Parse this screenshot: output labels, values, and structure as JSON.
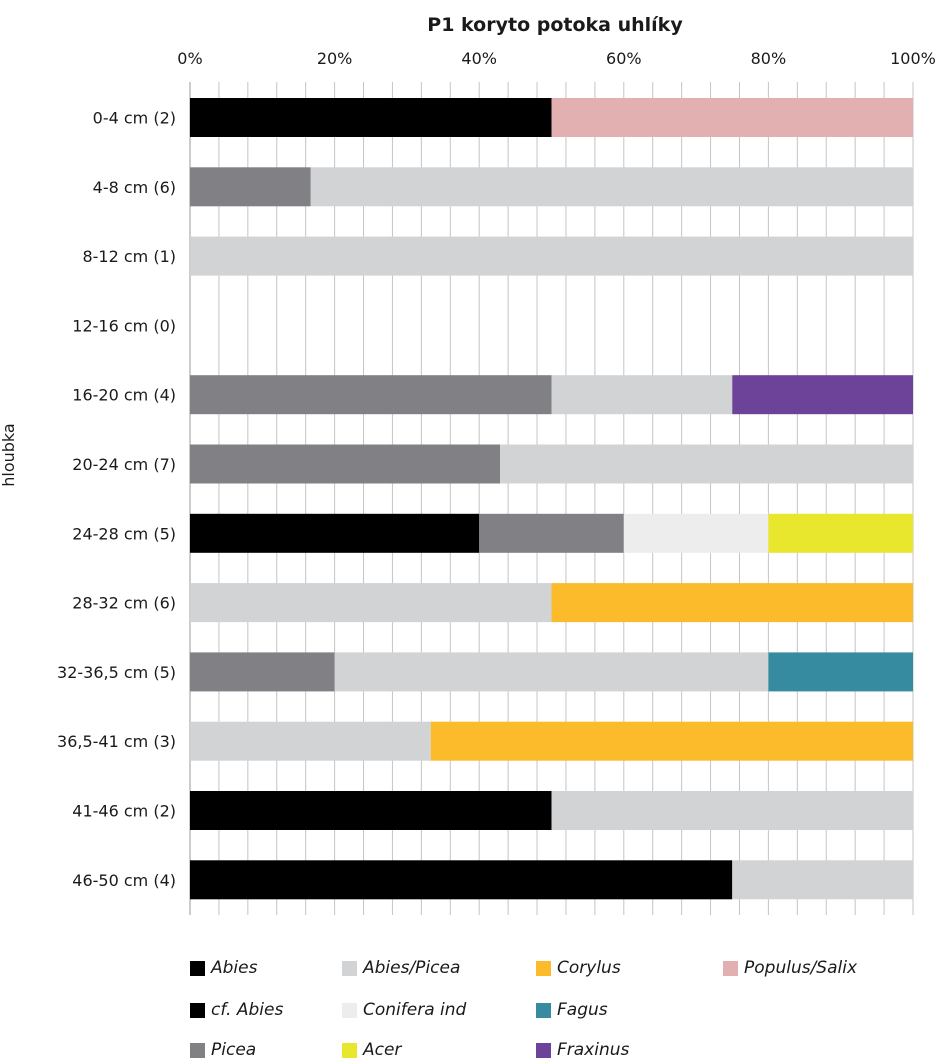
{
  "chart_data": {
    "type": "bar",
    "orientation": "horizontal",
    "stacked": "percent",
    "title": "P1 koryto potoka uhlíky",
    "xlabel": "",
    "ylabel": "hloubka",
    "xlim": [
      0,
      100
    ],
    "x_ticks": [
      "0%",
      "20%",
      "40%",
      "60%",
      "80%",
      "100%"
    ],
    "x_axis_position": "top",
    "grid": true,
    "legend_position": "bottom",
    "categories": [
      "0-4 cm (2)",
      "4-8 cm (6)",
      "8-12 cm (1)",
      "12-16 cm (0)",
      "16-20 cm (4)",
      "20-24 cm (7)",
      "24-28 cm (5)",
      "28-32 cm (6)",
      "32-36,5 cm (5)",
      "36,5-41 cm (3)",
      "41-46 cm (2)",
      "46-50 cm (4)"
    ],
    "series": [
      {
        "name": "Abies",
        "color": "#000000",
        "values": [
          50,
          0,
          0,
          0,
          0,
          0,
          40,
          0,
          0,
          0,
          50,
          75
        ]
      },
      {
        "name": "cf. Abies",
        "color": "#000000",
        "values": [
          0,
          0,
          0,
          0,
          0,
          0,
          0,
          0,
          0,
          0,
          0,
          0
        ]
      },
      {
        "name": "Picea",
        "color": "#808085",
        "values": [
          0,
          16.7,
          0,
          0,
          50,
          42.9,
          20,
          0,
          20,
          0,
          0,
          0
        ]
      },
      {
        "name": "Abies/Picea",
        "color": "#d2d3d5",
        "values": [
          0,
          83.3,
          100,
          0,
          25,
          57.1,
          0,
          50,
          60,
          33.3,
          50,
          25
        ]
      },
      {
        "name": "Conifera ind",
        "color": "#ededed",
        "values": [
          0,
          0,
          0,
          0,
          0,
          0,
          20,
          0,
          0,
          0,
          0,
          0
        ]
      },
      {
        "name": "Acer",
        "color": "#e8e62d",
        "values": [
          0,
          0,
          0,
          0,
          0,
          0,
          20,
          0,
          0,
          0,
          0,
          0
        ]
      },
      {
        "name": "Corylus",
        "color": "#fbbb2b",
        "values": [
          0,
          0,
          0,
          0,
          0,
          0,
          0,
          50,
          0,
          66.7,
          0,
          0
        ]
      },
      {
        "name": "Fagus",
        "color": "#368ba0",
        "values": [
          0,
          0,
          0,
          0,
          0,
          0,
          0,
          0,
          20,
          0,
          0,
          0
        ]
      },
      {
        "name": "Fraxinus",
        "color": "#6d4299",
        "values": [
          0,
          0,
          0,
          0,
          25,
          0,
          0,
          0,
          0,
          0,
          0,
          0
        ]
      },
      {
        "name": "Populus/Salix",
        "color": "#e3b0b2",
        "values": [
          50,
          0,
          0,
          0,
          0,
          0,
          0,
          0,
          0,
          0,
          0,
          0
        ]
      }
    ],
    "legend_order": [
      [
        "Abies",
        "Abies/Picea",
        "Corylus",
        "Populus/Salix"
      ],
      [
        "cf. Abies",
        "Conifera ind",
        "Fagus"
      ],
      [
        "Picea",
        "Acer",
        "Fraxinus"
      ]
    ]
  }
}
